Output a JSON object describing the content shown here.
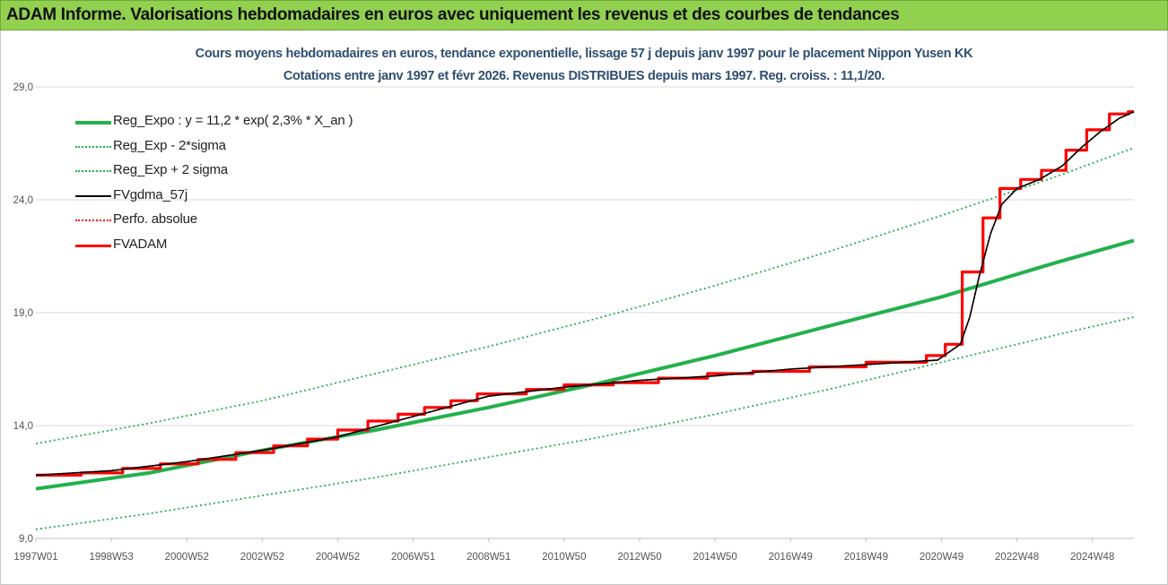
{
  "banner": {
    "title": "ADAM Informe. Valorisations hebdomadaires en euros avec uniquement les revenus et des courbes de tendances"
  },
  "chart_data": {
    "type": "line",
    "title_line1": "Cours moyens hebdomadaires en euros, tendance exponentielle, lissage 57 j depuis janv 1997 pour le placement Nippon Yusen KK",
    "title_line2": "Cotations entre janv 1997 et févr 2026. Revenus DISTRIBUES depuis mars 1997. Reg. croiss. : 11,1/20.",
    "x_tick_labels": [
      "1997W01",
      "1998W53",
      "2000W52",
      "2002W52",
      "2004W52",
      "2006W51",
      "2008W51",
      "2010W50",
      "2012W50",
      "2014W50",
      "2016W49",
      "2018W49",
      "2020W49",
      "2022W48",
      "2024W48"
    ],
    "x_tick_years": [
      1997.0,
      1999.0,
      2001.0,
      2003.0,
      2005.0,
      2007.0,
      2009.0,
      2011.0,
      2013.0,
      2015.0,
      2017.0,
      2019.0,
      2021.0,
      2023.0,
      2025.0
    ],
    "xlim": [
      1997.0,
      2026.1
    ],
    "y_tick_labels": [
      "9,0",
      "14,0",
      "19,0",
      "24,0",
      "29,0"
    ],
    "y_ticks": [
      9,
      14,
      19,
      24,
      29
    ],
    "ylim": [
      9,
      29
    ],
    "grid": {
      "horizontal": true,
      "vertical": false
    },
    "legend_position": "top-left",
    "series": [
      {
        "name": "Reg_Expo : y = 11,2 * exp( 2,3% *  X_an )",
        "color": "#22b14c",
        "style": "solid-thick",
        "x": [
          1997.0,
          2000.0,
          2003.0,
          2006.0,
          2009.0,
          2012.0,
          2015.0,
          2018.0,
          2021.0,
          2024.0,
          2026.1
        ],
        "y": [
          11.2,
          11.9,
          12.9,
          13.8,
          14.8,
          15.9,
          17.1,
          18.4,
          19.7,
          21.2,
          22.2
        ]
      },
      {
        "name": "Reg_Exp - 2*sigma",
        "color": "#22b14c",
        "style": "dotted",
        "x": [
          1997.0,
          2000.0,
          2003.0,
          2006.0,
          2009.0,
          2012.0,
          2015.0,
          2018.0,
          2021.0,
          2024.0,
          2026.1
        ],
        "y": [
          9.4,
          10.1,
          10.9,
          11.7,
          12.6,
          13.5,
          14.5,
          15.6,
          16.8,
          18.0,
          18.8
        ]
      },
      {
        "name": "Reg_Exp + 2 sigma",
        "color": "#22b14c",
        "style": "dotted",
        "x": [
          1997.0,
          2000.0,
          2003.0,
          2006.0,
          2009.0,
          2012.0,
          2015.0,
          2018.0,
          2021.0,
          2024.0,
          2026.1
        ],
        "y": [
          13.2,
          14.1,
          15.1,
          16.3,
          17.5,
          18.8,
          20.2,
          21.7,
          23.3,
          25.0,
          26.3
        ]
      },
      {
        "name": "FVgdma_57j",
        "color": "#000000",
        "style": "solid",
        "x": [
          1997.0,
          1999.0,
          2001.0,
          2003.0,
          2005.0,
          2007.0,
          2009.0,
          2011.0,
          2013.0,
          2015.0,
          2017.0,
          2019.0,
          2020.9,
          2021.5,
          2021.75,
          2022.0,
          2022.3,
          2022.6,
          2023.0,
          2023.6,
          2024.2,
          2024.7,
          2025.2,
          2025.7,
          2026.1
        ],
        "y": [
          11.8,
          12.0,
          12.4,
          12.9,
          13.5,
          14.4,
          15.3,
          15.7,
          16.0,
          16.2,
          16.5,
          16.7,
          16.9,
          17.6,
          18.8,
          20.6,
          22.5,
          23.8,
          24.5,
          24.9,
          25.5,
          26.3,
          27.0,
          27.6,
          27.9
        ]
      },
      {
        "name": "Perfo. absolue",
        "color": "#ff0000",
        "style": "dotted",
        "x": [
          1997.0,
          1999.0,
          2001.0,
          2003.0,
          2005.0,
          2007.0,
          2009.0,
          2011.0,
          2013.0,
          2015.0,
          2017.0,
          2019.0,
          2020.9,
          2021.5,
          2021.75,
          2022.0,
          2022.3,
          2022.6,
          2023.0,
          2023.6,
          2024.2,
          2024.7,
          2025.2,
          2025.7,
          2026.1
        ],
        "y": [
          11.8,
          12.0,
          12.4,
          12.9,
          13.5,
          14.4,
          15.3,
          15.7,
          16.0,
          16.2,
          16.5,
          16.7,
          16.9,
          17.6,
          18.8,
          20.6,
          22.5,
          23.8,
          24.5,
          24.9,
          25.5,
          26.3,
          27.0,
          27.6,
          27.9
        ]
      },
      {
        "name": "FVADAM",
        "color": "#ff0000",
        "style": "step-thick",
        "x": [
          1997.0,
          1998.2,
          1999.3,
          2000.3,
          2001.3,
          2002.3,
          2003.3,
          2004.2,
          2005.0,
          2005.8,
          2006.6,
          2007.3,
          2008.0,
          2008.7,
          2010.0,
          2011.0,
          2012.3,
          2013.5,
          2014.8,
          2016.0,
          2017.5,
          2019.0,
          2020.6,
          2021.1,
          2021.55,
          2022.1,
          2022.55,
          2023.1,
          2023.65,
          2024.3,
          2024.85,
          2025.45,
          2025.95,
          2026.1
        ],
        "y": [
          11.8,
          11.9,
          12.1,
          12.3,
          12.5,
          12.8,
          13.1,
          13.4,
          13.8,
          14.2,
          14.5,
          14.8,
          15.1,
          15.4,
          15.6,
          15.8,
          15.9,
          16.1,
          16.3,
          16.4,
          16.6,
          16.8,
          17.1,
          17.6,
          20.8,
          23.2,
          24.5,
          24.9,
          25.3,
          26.2,
          27.1,
          27.8,
          27.9,
          27.9
        ]
      }
    ]
  }
}
